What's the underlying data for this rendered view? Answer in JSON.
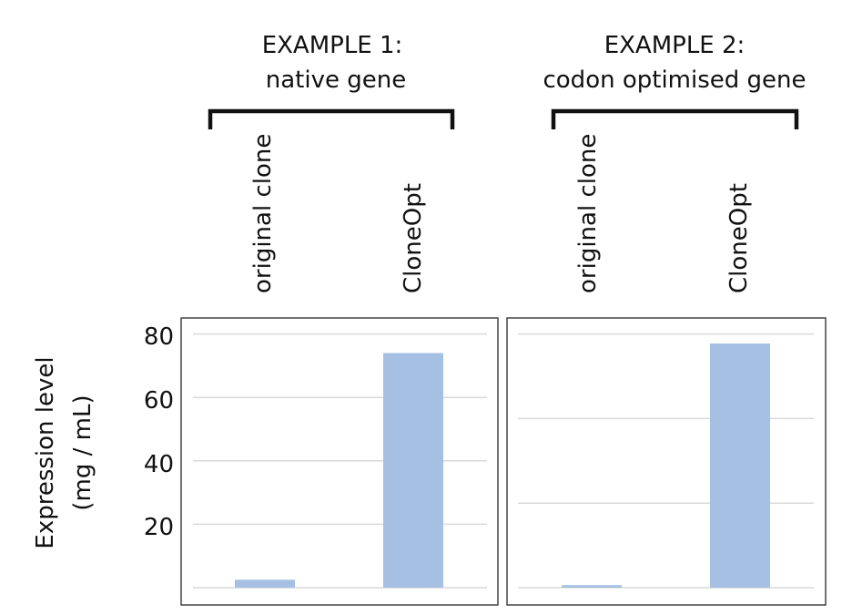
{
  "chart_data": {
    "type": "bar",
    "ylabel": "Expression level",
    "yunit": "(mg / mL)",
    "y_ticks": [
      "20",
      "40",
      "60",
      "80"
    ],
    "ylim": [
      0,
      80
    ],
    "grid": true,
    "bar_color": "#a6c0e4",
    "panels": [
      {
        "title_line1": "EXAMPLE 1:",
        "title_line2": "native gene",
        "categories": [
          "original clone",
          "CloneOpt"
        ],
        "values": [
          2.5,
          74
        ]
      },
      {
        "title_line1": "EXAMPLE 2:",
        "title_line2": "codon optimised gene",
        "categories": [
          "original clone",
          "CloneOpt"
        ],
        "values": [
          0.8,
          77
        ]
      }
    ]
  }
}
